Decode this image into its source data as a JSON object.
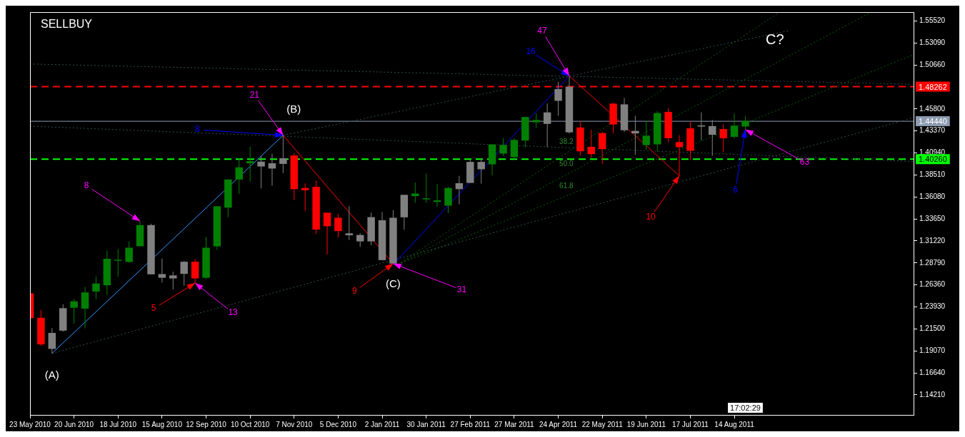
{
  "chart_data": {
    "type": "candlestick",
    "title": "SELLBUY",
    "x": [
      "2010-05-23",
      "2010-05-30",
      "2010-06-06",
      "2010-06-13",
      "2010-06-20",
      "2010-06-27",
      "2010-07-04",
      "2010-07-11",
      "2010-07-18",
      "2010-07-25",
      "2010-08-01",
      "2010-08-08",
      "2010-08-15",
      "2010-08-22",
      "2010-08-29",
      "2010-09-05",
      "2010-09-12",
      "2010-09-19",
      "2010-09-26",
      "2010-10-03",
      "2010-10-10",
      "2010-10-17",
      "2010-10-24",
      "2010-10-31",
      "2010-11-07",
      "2010-11-14",
      "2010-11-21",
      "2010-11-28",
      "2010-12-05",
      "2010-12-12",
      "2010-12-19",
      "2010-12-26",
      "2011-01-02",
      "2011-01-09",
      "2011-01-16",
      "2011-01-23",
      "2011-01-30",
      "2011-02-06",
      "2011-02-13",
      "2011-02-20",
      "2011-02-27",
      "2011-03-06",
      "2011-03-13",
      "2011-03-20",
      "2011-03-27",
      "2011-04-03",
      "2011-04-10",
      "2011-04-17",
      "2011-04-24",
      "2011-05-01",
      "2011-05-08",
      "2011-05-15",
      "2011-05-22",
      "2011-05-29",
      "2011-06-05",
      "2011-06-12",
      "2011-06-19",
      "2011-06-26",
      "2011-07-03",
      "2011-07-10",
      "2011-07-17",
      "2011-07-24",
      "2011-07-31",
      "2011-08-07",
      "2011-08-14",
      "2011-08-21"
    ],
    "ohlc": [
      [
        1.2542,
        1.2542,
        1.2269,
        1.2269
      ],
      [
        1.2273,
        1.2359,
        1.1961,
        1.1979
      ],
      [
        1.1929,
        1.2159,
        1.188,
        1.2106
      ],
      [
        1.2131,
        1.2424,
        1.2118,
        1.2379
      ],
      [
        1.2384,
        1.248,
        1.2209,
        1.2455
      ],
      [
        1.2374,
        1.2614,
        1.2156,
        1.2553
      ],
      [
        1.2563,
        1.2728,
        1.248,
        1.2652
      ],
      [
        1.2632,
        1.3016,
        1.2526,
        1.2925
      ],
      [
        1.2905,
        1.3032,
        1.2728,
        1.2915
      ],
      [
        1.289,
        1.3115,
        1.288,
        1.3047
      ],
      [
        1.3064,
        1.334,
        1.3057,
        1.3297
      ],
      [
        1.3297,
        1.3312,
        1.2753,
        1.2753
      ],
      [
        1.2756,
        1.2928,
        1.2662,
        1.2715
      ],
      [
        1.2708,
        1.2781,
        1.2586,
        1.2741
      ],
      [
        1.2758,
        1.29,
        1.2627,
        1.2892
      ],
      [
        1.2892,
        1.2922,
        1.2657,
        1.2708
      ],
      [
        1.2715,
        1.3168,
        1.2703,
        1.3047
      ],
      [
        1.3062,
        1.3505,
        1.3024,
        1.3505
      ],
      [
        1.349,
        1.3801,
        1.3383,
        1.3801
      ],
      [
        1.3801,
        1.4036,
        1.3641,
        1.3935
      ],
      [
        1.398,
        1.4162,
        1.3778,
        1.4003
      ],
      [
        1.3998,
        1.4061,
        1.3702,
        1.3945
      ],
      [
        1.3922,
        1.4087,
        1.3732,
        1.398
      ],
      [
        1.3973,
        1.4289,
        1.3871,
        1.4036
      ],
      [
        1.4066,
        1.4092,
        1.3573,
        1.3694
      ],
      [
        1.3707,
        1.3758,
        1.3454,
        1.3682
      ],
      [
        1.372,
        1.379,
        1.3201,
        1.3247
      ],
      [
        1.3434,
        1.3434,
        1.2973,
        1.3285
      ],
      [
        1.3378,
        1.3423,
        1.3162,
        1.3231
      ],
      [
        1.3206,
        1.3505,
        1.3132,
        1.3185
      ],
      [
        1.3188,
        1.3206,
        1.3056,
        1.3117
      ],
      [
        1.3117,
        1.3434,
        1.3074,
        1.3385
      ],
      [
        1.335,
        1.3441,
        1.291,
        1.291
      ],
      [
        1.2872,
        1.3462,
        1.2872,
        1.3378
      ],
      [
        1.3383,
        1.3631,
        1.3246,
        1.3631
      ],
      [
        1.3618,
        1.3768,
        1.3543,
        1.3646
      ],
      [
        1.3586,
        1.3866,
        1.3543,
        1.3593
      ],
      [
        1.3553,
        1.375,
        1.35,
        1.357
      ],
      [
        1.3512,
        1.372,
        1.3429,
        1.3707
      ],
      [
        1.3694,
        1.3841,
        1.3527,
        1.376
      ],
      [
        1.3763,
        1.4018,
        1.3763,
        1.3995
      ],
      [
        1.3995,
        1.4031,
        1.3755,
        1.3914
      ],
      [
        1.3968,
        1.4188,
        1.3846,
        1.4188
      ],
      [
        1.4087,
        1.4256,
        1.4061,
        1.4183
      ],
      [
        1.4048,
        1.4256,
        1.4018,
        1.4238
      ],
      [
        1.4231,
        1.4496,
        1.4157,
        1.4491
      ],
      [
        1.4433,
        1.4529,
        1.437,
        1.4458
      ],
      [
        1.4415,
        1.4641,
        1.4157,
        1.4542
      ],
      [
        1.467,
        1.488,
        1.4505,
        1.48
      ],
      [
        1.4826,
        1.4945,
        1.4309,
        1.4322
      ],
      [
        1.4375,
        1.4448,
        1.4066,
        1.4112
      ],
      [
        1.4162,
        1.4352,
        1.4043,
        1.4081
      ],
      [
        1.4314,
        1.4327,
        1.3973,
        1.4137
      ],
      [
        1.4639,
        1.4649,
        1.431,
        1.4409
      ],
      [
        1.4345,
        1.4702,
        1.4325,
        1.4631
      ],
      [
        1.4338,
        1.4505,
        1.4075,
        1.431
      ],
      [
        1.4181,
        1.4449,
        1.4125,
        1.4285
      ],
      [
        1.4189,
        1.4555,
        1.4108,
        1.4535
      ],
      [
        1.4548,
        1.4588,
        1.4214,
        1.4257
      ],
      [
        1.4214,
        1.429,
        1.3842,
        1.4158
      ],
      [
        1.4366,
        1.4442,
        1.4016,
        1.4118
      ],
      [
        1.4386,
        1.4543,
        1.4234,
        1.4399
      ],
      [
        1.4391,
        1.4459,
        1.4062,
        1.4295
      ],
      [
        1.4358,
        1.4411,
        1.4105,
        1.4257
      ],
      [
        1.4272,
        1.4527,
        1.4252,
        1.4396
      ],
      [
        1.4386,
        1.4502,
        1.4353,
        1.4449
      ]
    ],
    "colors": [
      "#ff0000",
      "#ff0000",
      "#808080",
      "#808080",
      "#008000",
      "#008000",
      "#008000",
      "#008000",
      "#008000",
      "#008000",
      "#008000",
      "#808080",
      "#808080",
      "#808080",
      "#808080",
      "#ff0000",
      "#008000",
      "#008000",
      "#008000",
      "#008000",
      "#008000",
      "#808080",
      "#808080",
      "#808080",
      "#ff0000",
      "#ff0000",
      "#ff0000",
      "#ff0000",
      "#ff0000",
      "#808080",
      "#808080",
      "#808080",
      "#808080",
      "#808080",
      "#808080",
      "#008000",
      "#008000",
      "#008000",
      "#008000",
      "#808080",
      "#808080",
      "#808080",
      "#008000",
      "#008000",
      "#008000",
      "#008000",
      "#008000",
      "#808080",
      "#808080",
      "#808080",
      "#ff0000",
      "#ff0000",
      "#ff0000",
      "#ff0000",
      "#808080",
      "#808080",
      "#008000",
      "#008000",
      "#ff0000",
      "#ff0000",
      "#ff0000",
      "#808080",
      "#808080",
      "#ff0000",
      "#008000",
      "#008000"
    ],
    "series": [
      {
        "type": "line",
        "x": [
          "2010-06-06",
          "2010-10-31"
        ],
        "values": [
          1.188,
          1.4289
        ],
        "color": "#3399ff",
        "line_style": "solid"
      },
      {
        "type": "line",
        "x": [
          "2010-10-31",
          "2011-01-09"
        ],
        "values": [
          1.4289,
          1.2872
        ],
        "color": "#ff0000",
        "line_style": "solid"
      },
      {
        "type": "line",
        "x": [
          "2011-01-09",
          "2011-05-01"
        ],
        "values": [
          1.2862,
          1.4945
        ],
        "color": "#0000ff",
        "line_style": "solid"
      },
      {
        "type": "line",
        "x": [
          "2011-05-01",
          "2011-07-10"
        ],
        "values": [
          1.4945,
          1.3842
        ],
        "color": "#ff0000",
        "line_style": "solid"
      },
      {
        "type": "line",
        "x": [
          "2010-06-06",
          "2011-12-06"
        ],
        "values": [
          1.188,
          1.4482
        ],
        "color": "#2f4f4f",
        "line_style": "dotted"
      },
      {
        "type": "line",
        "x": [
          "2010-05-23",
          "2011-12-06"
        ],
        "values": [
          1.5077,
          1.4853
        ],
        "color": "#2f4f4f",
        "line_style": "dotted"
      },
      {
        "type": "line",
        "x": [
          "2010-05-23",
          "2011-12-06"
        ],
        "values": [
          1.439,
          1.4
        ],
        "color": "#2f4f4f",
        "line_style": "dotted"
      },
      {
        "type": "line",
        "x": [
          "2010-10-31",
          "2011-09-18"
        ],
        "values": [
          1.4289,
          1.5446
        ],
        "color": "#2f4f4f",
        "line_style": "dotted"
      },
      {
        "type": "line",
        "x": [
          "2011-01-12",
          "2011-09-11"
        ],
        "values": [
          1.2862,
          1.564
        ],
        "color": "#006400",
        "line_style": "dotted"
      },
      {
        "type": "line",
        "x": [
          "2011-01-12",
          "2011-11-08"
        ],
        "values": [
          1.2862,
          1.564
        ],
        "color": "#006400",
        "line_style": "dotted"
      },
      {
        "type": "line",
        "x": [
          "2011-01-12",
          "2011-12-06"
        ],
        "values": [
          1.2862,
          1.518
        ],
        "color": "#006400",
        "line_style": "dotted"
      }
    ],
    "xlim": [
      "2010-05-23",
      "2011-12-06"
    ],
    "xticks": [
      {
        "value": "2010-05-23",
        "label": "23 May 2010"
      },
      {
        "value": "2010-06-20",
        "label": "20 Jun 2010"
      },
      {
        "value": "2010-07-18",
        "label": "18 Jul 2010"
      },
      {
        "value": "2010-08-15",
        "label": "15 Aug 2010"
      },
      {
        "value": "2010-09-12",
        "label": "12 Sep 2010"
      },
      {
        "value": "2010-10-10",
        "label": "10 Oct 2010"
      },
      {
        "value": "2010-11-07",
        "label": "7 Nov 2010"
      },
      {
        "value": "2010-12-05",
        "label": "5 Dec 2010"
      },
      {
        "value": "2011-01-02",
        "label": "2 Jan 2011"
      },
      {
        "value": "2011-01-30",
        "label": "30 Jan 2011"
      },
      {
        "value": "2011-02-27",
        "label": "27 Feb 2011"
      },
      {
        "value": "2011-03-27",
        "label": "27 Mar 2011"
      },
      {
        "value": "2011-04-24",
        "label": "24 Apr 2011"
      },
      {
        "value": "2011-05-22",
        "label": "22 May 2011"
      },
      {
        "value": "2011-06-19",
        "label": "19 Jun 2011"
      },
      {
        "value": "2011-07-17",
        "label": "17 Jul 2011"
      },
      {
        "value": "2011-08-14",
        "label": "14 Aug 2011"
      }
    ],
    "ylim": [
      1.12,
      1.565
    ],
    "yticks": [
      {
        "value": 1.1421,
        "label": "1.14210"
      },
      {
        "value": 1.1664,
        "label": "1.16640"
      },
      {
        "value": 1.1907,
        "label": "1.19070"
      },
      {
        "value": 1.215,
        "label": "1.21500"
      },
      {
        "value": 1.2393,
        "label": "1.23930"
      },
      {
        "value": 1.2636,
        "label": "1.26360"
      },
      {
        "value": 1.2879,
        "label": "1.28790"
      },
      {
        "value": 1.3122,
        "label": "1.31220"
      },
      {
        "value": 1.3365,
        "label": "1.33650"
      },
      {
        "value": 1.3608,
        "label": "1.36080"
      },
      {
        "value": 1.3851,
        "label": "1.38510"
      },
      {
        "value": 1.4094,
        "label": "1.40940"
      },
      {
        "value": 1.4337,
        "label": "1.43370"
      },
      {
        "value": 1.458,
        "label": "1.45800"
      },
      {
        "value": 1.5066,
        "label": "1.50660"
      },
      {
        "value": 1.5309,
        "label": "1.53090"
      },
      {
        "value": 1.5552,
        "label": "1.55520"
      }
    ],
    "ref_lines": [
      {
        "axis": "y",
        "value": 1.48262,
        "label": "1.48262",
        "color": "#ff0000",
        "line_style": "dashed"
      },
      {
        "axis": "y",
        "value": 1.4444,
        "label": "1.44440",
        "color": "#8c9bb0",
        "line_style": "solid"
      },
      {
        "axis": "y",
        "value": 1.4026,
        "label": "1.40260",
        "color": "#00ff00",
        "line_style": "dashed"
      }
    ],
    "annotations": [
      {
        "text": "8",
        "x": "2010-10-31",
        "y": 1.4289
      },
      {
        "text": "21",
        "x": "2010-10-31",
        "y": 1.4289
      },
      {
        "text": "(B)",
        "x": "2010-10-31",
        "y": 1.4289
      },
      {
        "text": "8",
        "x": "2010-08-01",
        "y": 1.334
      },
      {
        "text": "5",
        "x": "2010-09-05",
        "y": 1.2657
      },
      {
        "text": "13",
        "x": "2010-09-05",
        "y": 1.2657
      },
      {
        "text": "(A)",
        "x": "2010-06-06",
        "y": 1.188
      },
      {
        "text": "9",
        "x": "2011-01-09",
        "y": 1.2872
      },
      {
        "text": "(C)",
        "x": "2011-01-09",
        "y": 1.2872
      },
      {
        "text": "31",
        "x": "2011-01-09",
        "y": 1.2872
      },
      {
        "text": "16",
        "x": "2011-05-01",
        "y": 1.4945
      },
      {
        "text": "47",
        "x": "2011-05-01",
        "y": 1.4945
      },
      {
        "text": "10",
        "x": "2011-07-10",
        "y": 1.3842
      },
      {
        "text": "6",
        "x": "2011-08-21",
        "y": 1.4353
      },
      {
        "text": "63",
        "x": "2011-08-21",
        "y": 1.4353
      },
      "C?",
      "38.2",
      "50.0",
      "61.8",
      "17:02:29"
    ],
    "legend": false
  }
}
